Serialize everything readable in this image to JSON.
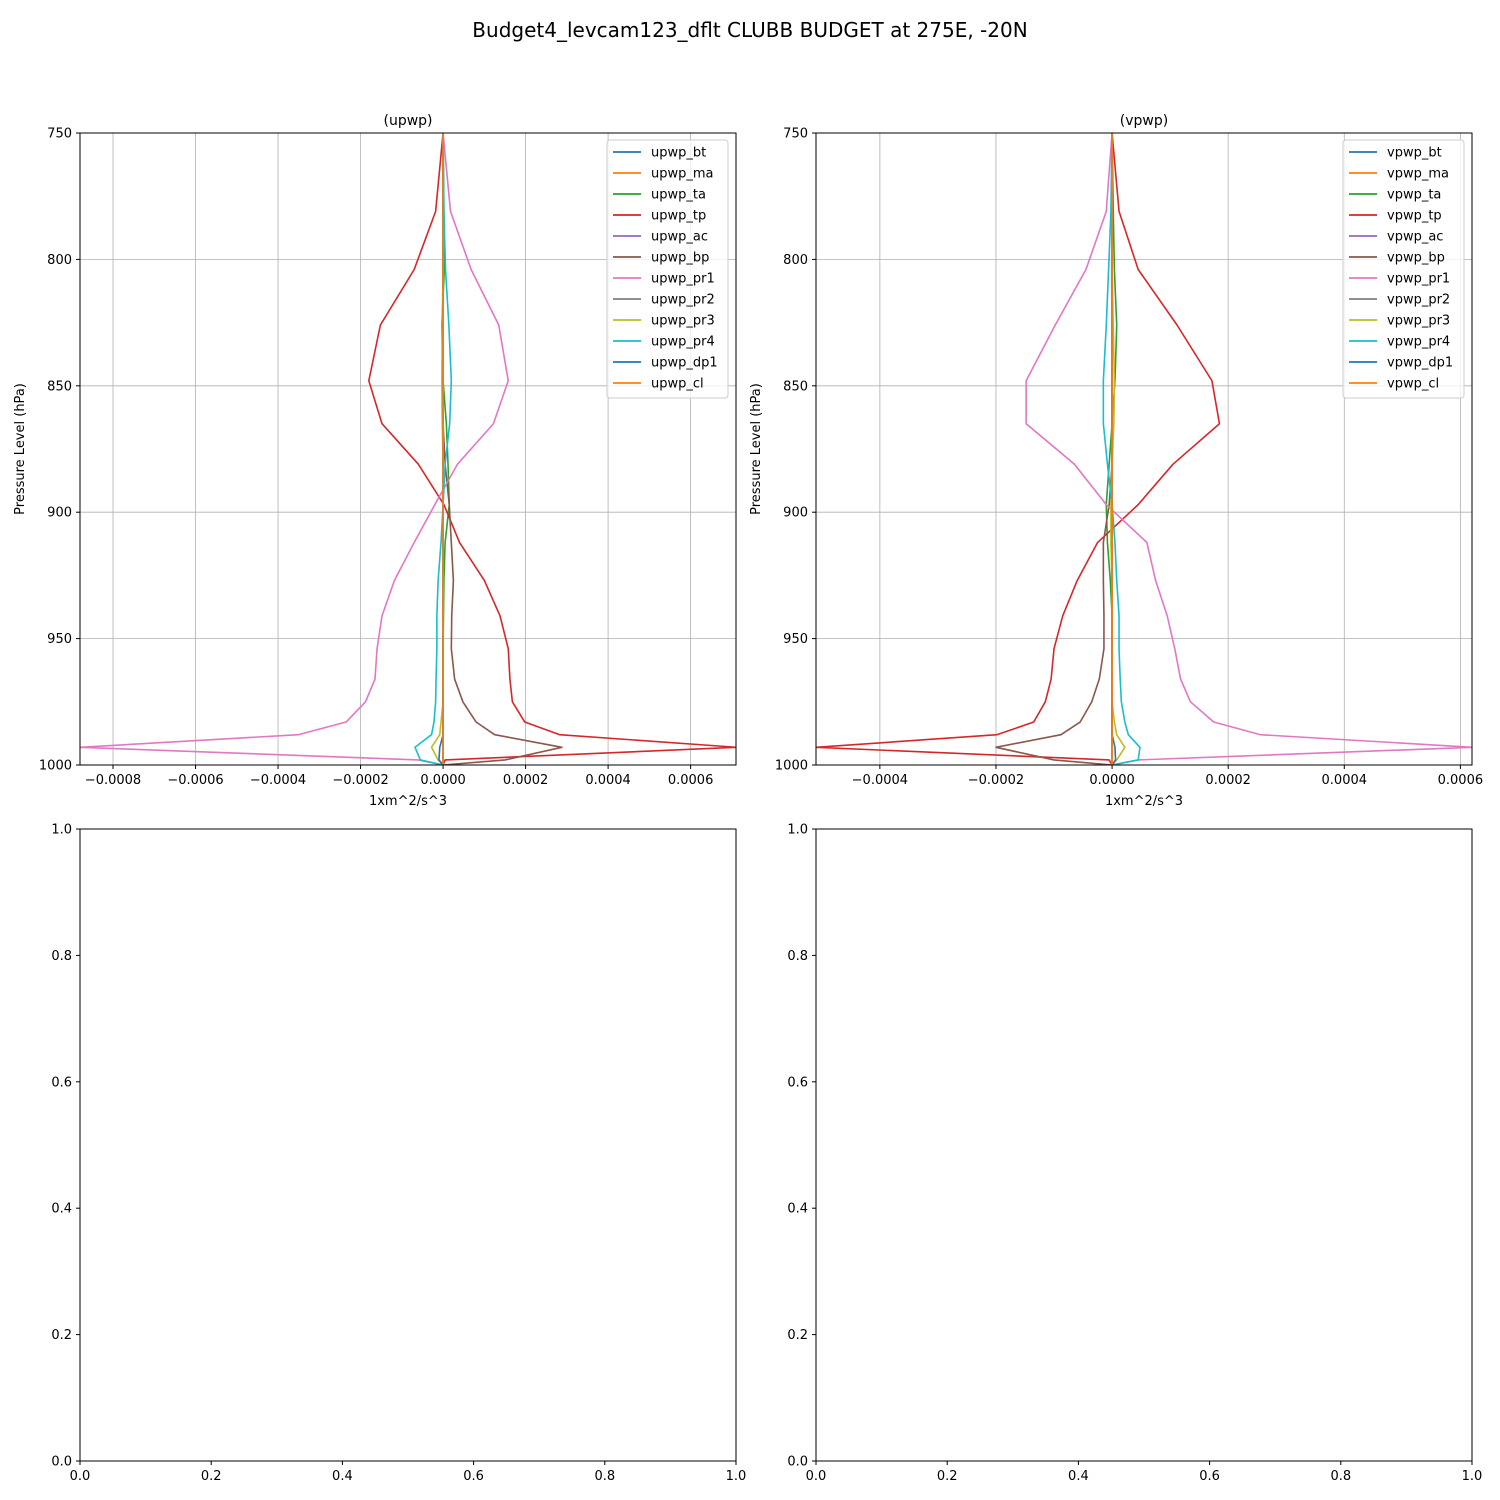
{
  "figure": {
    "suptitle": "Budget4_levcam123_dflt CLUBB BUDGET at 275E, -20N"
  },
  "chart_data": [
    {
      "type": "line",
      "title": "(upwp)",
      "xlabel": "1xm^2/s^3",
      "ylabel": "Pressure Level (hPa)",
      "xlim": [
        -0.00088,
        0.00071
      ],
      "ylim": [
        1000,
        750
      ],
      "y_inverted": true,
      "grid": true,
      "legend": "upper right",
      "xticks": [
        -0.0008,
        -0.0006,
        -0.0004,
        -0.0002,
        0.0,
        0.0002,
        0.0004,
        0.0006
      ],
      "xtick_labels": [
        "−0.0008",
        "−0.0006",
        "−0.0004",
        "−0.0002",
        "0.0000",
        "0.0002",
        "0.0004",
        "0.0006"
      ],
      "yticks": [
        750,
        800,
        850,
        900,
        950,
        1000
      ],
      "ytick_labels": [
        "750",
        "800",
        "850",
        "900",
        "950",
        "1000"
      ],
      "y": [
        750,
        781,
        804,
        826,
        848,
        865,
        881,
        897,
        912,
        927,
        941,
        954,
        966,
        975,
        983,
        988,
        993,
        998,
        1000
      ],
      "series": [
        {
          "name": "upwp_bt",
          "color": "#1f77b4",
          "values": [
            0,
            0,
            0,
            0,
            0,
            0,
            0,
            0,
            0,
            0,
            0,
            0,
            0,
            0,
            0,
            0,
            0,
            0,
            0
          ]
        },
        {
          "name": "upwp_ma",
          "color": "#ff7f0e",
          "values": [
            0,
            0,
            0,
            0,
            0,
            0,
            0,
            0,
            0,
            0,
            0,
            0,
            0,
            0,
            0,
            0,
            0,
            0,
            0
          ]
        },
        {
          "name": "upwp_ta",
          "color": "#2ca02c",
          "values": [
            0,
            2e-06,
            3e-06,
            -3e-06,
            0,
            8e-06,
            1.2e-05,
            1.5e-05,
            5e-06,
            2e-06,
            1e-06,
            0,
            0,
            0,
            0,
            0,
            0,
            0,
            0
          ]
        },
        {
          "name": "upwp_tp",
          "color": "#d62728",
          "values": [
            0,
            -1.8e-05,
            -7e-05,
            -0.000152,
            -0.00018,
            -0.000148,
            -6e-05,
            2e-06,
            4e-05,
            0.0001,
            0.000138,
            0.000158,
            0.000162,
            0.000168,
            0.000198,
            0.000282,
            0.000712,
            5e-06,
            0
          ]
        },
        {
          "name": "upwp_ac",
          "color": "#9467bd",
          "values": [
            0,
            0,
            0,
            0,
            0,
            0,
            0,
            0,
            0,
            0,
            0,
            0,
            0,
            0,
            0,
            0,
            0,
            0,
            0
          ]
        },
        {
          "name": "upwp_bp",
          "color": "#8c564b",
          "values": [
            0,
            0,
            0,
            0,
            0,
            0,
            5e-06,
            1.5e-05,
            2e-05,
            2.5e-05,
            2.1e-05,
            2e-05,
            2.8e-05,
            4.8e-05,
            8e-05,
            0.000125,
            0.000288,
            0.00015,
            0
          ]
        },
        {
          "name": "upwp_pr1",
          "color": "#e377c2",
          "values": [
            0,
            1.8e-05,
            6.8e-05,
            0.000135,
            0.000158,
            0.000122,
            3.5e-05,
            -2e-05,
            -7e-05,
            -0.000118,
            -0.000148,
            -0.00016,
            -0.000165,
            -0.000188,
            -0.000235,
            -0.00035,
            -0.00088,
            -6e-05,
            0
          ]
        },
        {
          "name": "upwp_pr2",
          "color": "#7f7f7f",
          "values": [
            0,
            0,
            0,
            0,
            0,
            0,
            0,
            0,
            0,
            0,
            0,
            0,
            0,
            0,
            0,
            0,
            0,
            0,
            0
          ]
        },
        {
          "name": "upwp_pr3",
          "color": "#bcbd22",
          "values": [
            0,
            0,
            0,
            -2e-06,
            -3e-06,
            -2e-06,
            0,
            0,
            0,
            0,
            0,
            0,
            0,
            0,
            -5e-06,
            -8e-06,
            -2.8e-05,
            -1.2e-05,
            0
          ]
        },
        {
          "name": "upwp_pr4",
          "color": "#17becf",
          "values": [
            0,
            2e-06,
            6e-06,
            1.4e-05,
            2e-05,
            1.6e-05,
            5e-06,
            0,
            -5e-06,
            -1.2e-05,
            -1.5e-05,
            -1.5e-05,
            -1.7e-05,
            -1.8e-05,
            -2.2e-05,
            -2.8e-05,
            -6.8e-05,
            -5.5e-05,
            0
          ]
        },
        {
          "name": "upwp_dp1",
          "color": "#1f77b4",
          "values": [
            0,
            0,
            0,
            0,
            0,
            0,
            0,
            0,
            0,
            0,
            0,
            0,
            0,
            0,
            0,
            0,
            -8e-06,
            -1e-05,
            0
          ]
        },
        {
          "name": "upwp_cl",
          "color": "#ff7f0e",
          "values": [
            0,
            0,
            0,
            0,
            0,
            0,
            0,
            0,
            0,
            0,
            0,
            0,
            0,
            0,
            0,
            0,
            0,
            0,
            0
          ]
        }
      ]
    },
    {
      "type": "line",
      "title": "(vpwp)",
      "xlabel": "1xm^2/s^3",
      "ylabel": "Pressure Level (hPa)",
      "xlim": [
        -0.00051,
        0.00062
      ],
      "ylim": [
        1000,
        750
      ],
      "y_inverted": true,
      "grid": true,
      "legend": "upper right",
      "xticks": [
        -0.0004,
        -0.0002,
        0.0,
        0.0002,
        0.0004,
        0.0006
      ],
      "xtick_labels": [
        "−0.0004",
        "−0.0002",
        "0.0000",
        "0.0002",
        "0.0004",
        "0.0006"
      ],
      "yticks": [
        750,
        800,
        850,
        900,
        950,
        1000
      ],
      "ytick_labels": [
        "750",
        "800",
        "850",
        "900",
        "950",
        "1000"
      ],
      "y": [
        750,
        781,
        804,
        826,
        848,
        865,
        881,
        897,
        912,
        927,
        941,
        954,
        966,
        975,
        983,
        988,
        993,
        998,
        1000
      ],
      "series": [
        {
          "name": "vpwp_bt",
          "color": "#1f77b4",
          "values": [
            0,
            0,
            0,
            0,
            0,
            0,
            0,
            0,
            0,
            0,
            0,
            0,
            0,
            0,
            0,
            0,
            0,
            0,
            0
          ]
        },
        {
          "name": "vpwp_ma",
          "color": "#ff7f0e",
          "values": [
            0,
            0,
            0,
            0,
            0,
            0,
            0,
            0,
            0,
            0,
            0,
            0,
            0,
            0,
            0,
            0,
            0,
            0,
            0
          ]
        },
        {
          "name": "vpwp_ta",
          "color": "#2ca02c",
          "values": [
            0,
            2e-06,
            4e-06,
            8e-06,
            5e-06,
            0,
            -5e-06,
            -1e-05,
            -8e-06,
            -3e-06,
            0,
            0,
            0,
            0,
            0,
            0,
            0,
            0,
            0
          ]
        },
        {
          "name": "vpwp_tp",
          "color": "#d62728",
          "values": [
            0,
            1.2e-05,
            4.5e-05,
            0.000112,
            0.000172,
            0.000185,
            0.000105,
            4.5e-05,
            -2.5e-05,
            -6e-05,
            -8.5e-05,
            -0.0001,
            -0.000105,
            -0.000115,
            -0.000135,
            -0.000198,
            -0.00051,
            -5e-06,
            0
          ]
        },
        {
          "name": "vpwp_ac",
          "color": "#9467bd",
          "values": [
            0,
            0,
            0,
            0,
            0,
            0,
            0,
            0,
            0,
            0,
            0,
            0,
            0,
            0,
            0,
            0,
            0,
            0,
            0
          ]
        },
        {
          "name": "vpwp_bp",
          "color": "#8c564b",
          "values": [
            0,
            0,
            0,
            0,
            0,
            0,
            0,
            -5e-06,
            -1.5e-05,
            -1.5e-05,
            -1.4e-05,
            -1.4e-05,
            -2.2e-05,
            -3.5e-05,
            -5.5e-05,
            -8.8e-05,
            -0.0002,
            -0.0001,
            0
          ]
        },
        {
          "name": "vpwp_pr1",
          "color": "#e377c2",
          "values": [
            0,
            -1e-05,
            -4.5e-05,
            -9.8e-05,
            -0.000148,
            -0.000148,
            -6.5e-05,
            -1e-05,
            6e-05,
            7.5e-05,
            9.5e-05,
            0.000108,
            0.000118,
            0.000135,
            0.000175,
            0.000255,
            0.00062,
            4.5e-05,
            0
          ]
        },
        {
          "name": "vpwp_pr2",
          "color": "#7f7f7f",
          "values": [
            0,
            0,
            0,
            0,
            0,
            0,
            0,
            0,
            0,
            0,
            0,
            0,
            0,
            0,
            0,
            0,
            0,
            0,
            0
          ]
        },
        {
          "name": "vpwp_pr3",
          "color": "#bcbd22",
          "values": [
            0,
            0,
            0,
            2e-06,
            4e-06,
            3e-06,
            0,
            -2e-06,
            -2e-06,
            0,
            0,
            0,
            0,
            0,
            4e-06,
            8e-06,
            2.2e-05,
            8e-06,
            0
          ]
        },
        {
          "name": "vpwp_pr4",
          "color": "#17becf",
          "values": [
            0,
            -2e-06,
            -6e-06,
            -1e-05,
            -1.5e-05,
            -1.5e-05,
            -8e-06,
            0,
            5e-06,
            8e-06,
            1.2e-05,
            1.2e-05,
            1.4e-05,
            1.6e-05,
            2.2e-05,
            2.8e-05,
            4.8e-05,
            4.5e-05,
            0
          ]
        },
        {
          "name": "vpwp_dp1",
          "color": "#1f77b4",
          "values": [
            0,
            0,
            0,
            0,
            0,
            0,
            0,
            0,
            0,
            0,
            0,
            0,
            0,
            0,
            0,
            0,
            5e-06,
            6e-06,
            0
          ]
        },
        {
          "name": "vpwp_cl",
          "color": "#ff7f0e",
          "values": [
            0,
            0,
            0,
            0,
            0,
            0,
            0,
            0,
            0,
            0,
            0,
            0,
            0,
            0,
            0,
            0,
            0,
            0,
            0
          ]
        }
      ]
    },
    {
      "type": "line",
      "title": "",
      "empty": true,
      "xlim": [
        0,
        1
      ],
      "ylim": [
        0,
        1
      ],
      "xticks": [
        0,
        0.2,
        0.4,
        0.6,
        0.8,
        1.0
      ],
      "xtick_labels": [
        "0.0",
        "0.2",
        "0.4",
        "0.6",
        "0.8",
        "1.0"
      ],
      "yticks": [
        0,
        0.2,
        0.4,
        0.6,
        0.8,
        1.0
      ],
      "ytick_labels": [
        "0.0",
        "0.2",
        "0.4",
        "0.6",
        "0.8",
        "1.0"
      ]
    },
    {
      "type": "line",
      "title": "",
      "empty": true,
      "xlim": [
        0,
        1
      ],
      "ylim": [
        0,
        1
      ],
      "xticks": [
        0,
        0.2,
        0.4,
        0.6,
        0.8,
        1.0
      ],
      "xtick_labels": [
        "0.0",
        "0.2",
        "0.4",
        "0.6",
        "0.8",
        "1.0"
      ],
      "yticks": [
        0,
        0.2,
        0.4,
        0.6,
        0.8,
        1.0
      ],
      "ytick_labels": [
        "0.0",
        "0.2",
        "0.4",
        "0.6",
        "0.8",
        "1.0"
      ]
    }
  ]
}
